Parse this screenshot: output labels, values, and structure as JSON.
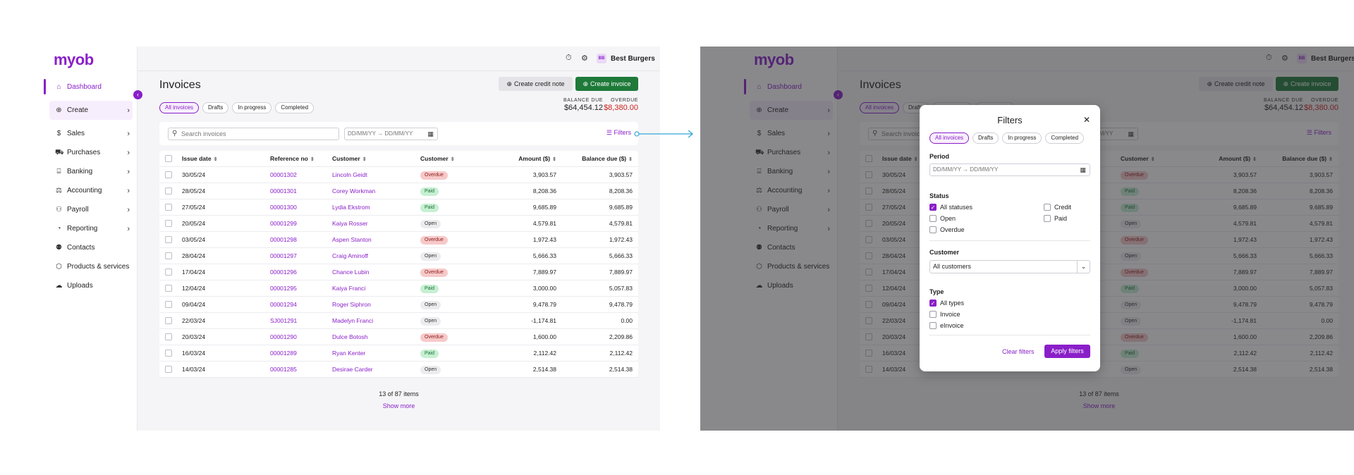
{
  "brand": {
    "logo": "myob",
    "accent": "#8a1fc9",
    "create_green": "#1f7a3a",
    "overdue_red": "#c8231f"
  },
  "sidebar": {
    "items": [
      {
        "label": "Dashboard",
        "icon": "home-icon",
        "glyph": "⌂",
        "active": true,
        "chevron": false
      },
      {
        "label": "Create",
        "icon": "plus-circle-icon",
        "glyph": "⊕",
        "active": false,
        "chevron": true,
        "create": true
      },
      {
        "label": "Sales",
        "icon": "dollar-icon",
        "glyph": "$",
        "active": false,
        "chevron": true
      },
      {
        "label": "Purchases",
        "icon": "cart-icon",
        "glyph": "⛟",
        "active": false,
        "chevron": true
      },
      {
        "label": "Banking",
        "icon": "bank-icon",
        "glyph": "⌸",
        "active": false,
        "chevron": true
      },
      {
        "label": "Accounting",
        "icon": "scale-icon",
        "glyph": "⚖",
        "active": false,
        "chevron": true
      },
      {
        "label": "Payroll",
        "icon": "person-icon",
        "glyph": "⚇",
        "active": false,
        "chevron": true
      },
      {
        "label": "Reporting",
        "icon": "chart-icon",
        "glyph": "◔",
        "active": false,
        "chevron": true
      },
      {
        "label": "Contacts",
        "icon": "contacts-icon",
        "glyph": "⚉",
        "active": false,
        "chevron": false
      },
      {
        "label": "Products & services",
        "icon": "box-icon",
        "glyph": "⬡",
        "active": false,
        "chevron": false
      },
      {
        "label": "Uploads",
        "icon": "cloud-upload-icon",
        "glyph": "☁",
        "active": false,
        "chevron": false
      }
    ]
  },
  "topbar": {
    "org_initials": "BB",
    "org_name": "Best Burgers",
    "help_icon": "help-icon",
    "settings_icon": "gear-icon"
  },
  "page": {
    "title": "Invoices",
    "create_credit_label": "Create credit note",
    "create_invoice_label": "Create invoice",
    "tabs": [
      "All invoices",
      "Drafts",
      "In progress",
      "Completed"
    ],
    "balance_due_label": "BALANCE DUE",
    "balance_due_value": "$64,454.12",
    "overdue_label": "OVERDUE",
    "overdue_value": "$8,380.00",
    "search_placeholder": "Search invoices",
    "date_from": "DD/MM/YY",
    "date_to": "DD/MM/YY",
    "filters_label": "Filters",
    "columns": [
      "Issue date",
      "Reference no",
      "Customer",
      "Customer",
      "Amount ($)",
      "Balance due ($)"
    ],
    "rows": [
      {
        "date": "30/05/24",
        "ref": "00001302",
        "customer": "Lincoln Geidt",
        "status": "Overdue",
        "amount": "3,903.57",
        "balance": "3,903.57"
      },
      {
        "date": "28/05/24",
        "ref": "00001301",
        "customer": "Corey Workman",
        "status": "Paid",
        "amount": "8,208.36",
        "balance": "8,208.36"
      },
      {
        "date": "27/05/24",
        "ref": "00001300",
        "customer": "Lydia Ekstrom",
        "status": "Paid",
        "amount": "9,685.89",
        "balance": "9,685.89"
      },
      {
        "date": "20/05/24",
        "ref": "00001299",
        "customer": "Kaiya Rosser",
        "status": "Open",
        "amount": "4,579.81",
        "balance": "4,579.81"
      },
      {
        "date": "03/05/24",
        "ref": "00001298",
        "customer": "Aspen Stanton",
        "status": "Overdue",
        "amount": "1,972.43",
        "balance": "1,972.43"
      },
      {
        "date": "28/04/24",
        "ref": "00001297",
        "customer": "Craig Aminoff",
        "status": "Open",
        "amount": "5,666.33",
        "balance": "5,666.33"
      },
      {
        "date": "17/04/24",
        "ref": "00001296",
        "customer": "Chance Lubin",
        "status": "Overdue",
        "amount": "7,889.97",
        "balance": "7,889.97"
      },
      {
        "date": "12/04/24",
        "ref": "00001295",
        "customer": "Kaiya Franci",
        "status": "Paid",
        "amount": "3,000.00",
        "balance": "5,057.83"
      },
      {
        "date": "09/04/24",
        "ref": "00001294",
        "customer": "Roger Siphron",
        "status": "Open",
        "amount": "9,478.79",
        "balance": "9,478.79"
      },
      {
        "date": "22/03/24",
        "ref": "SJ001291",
        "customer": "Madelyn Franci",
        "status": "Open",
        "amount": "-1,174.81",
        "balance": "0.00"
      },
      {
        "date": "20/03/24",
        "ref": "00001290",
        "customer": "Dulce Botosh",
        "status": "Overdue",
        "amount": "1,600.00",
        "balance": "2,209.86"
      },
      {
        "date": "16/03/24",
        "ref": "00001289",
        "customer": "Ryan Kenter",
        "status": "Paid",
        "amount": "2,112.42",
        "balance": "2,112.42"
      },
      {
        "date": "14/03/24",
        "ref": "00001285",
        "customer": "Desirae Carder",
        "status": "Open",
        "amount": "2,514.38",
        "balance": "2,514.38"
      }
    ],
    "pager_text": "13 of 87 items",
    "show_more": "Show more"
  },
  "modal": {
    "title": "Filters",
    "tabs": [
      "All invoices",
      "Drafts",
      "In progress",
      "Completed"
    ],
    "period_label": "Period",
    "date_from": "DD/MM/YY",
    "date_to": "DD/MM/YY",
    "status_label": "Status",
    "status_options": [
      {
        "label": "All statuses",
        "checked": true
      },
      {
        "label": "Open",
        "checked": false
      },
      {
        "label": "Overdue",
        "checked": false
      },
      {
        "label": "Credit",
        "checked": false
      },
      {
        "label": "Paid",
        "checked": false
      }
    ],
    "customer_label": "Customer",
    "customer_value": "All customers",
    "type_label": "Type",
    "type_options": [
      {
        "label": "All types",
        "checked": true
      },
      {
        "label": "Invoice",
        "checked": false
      },
      {
        "label": "eInvoice",
        "checked": false
      }
    ],
    "clear_label": "Clear filters",
    "apply_label": "Apply filters"
  }
}
